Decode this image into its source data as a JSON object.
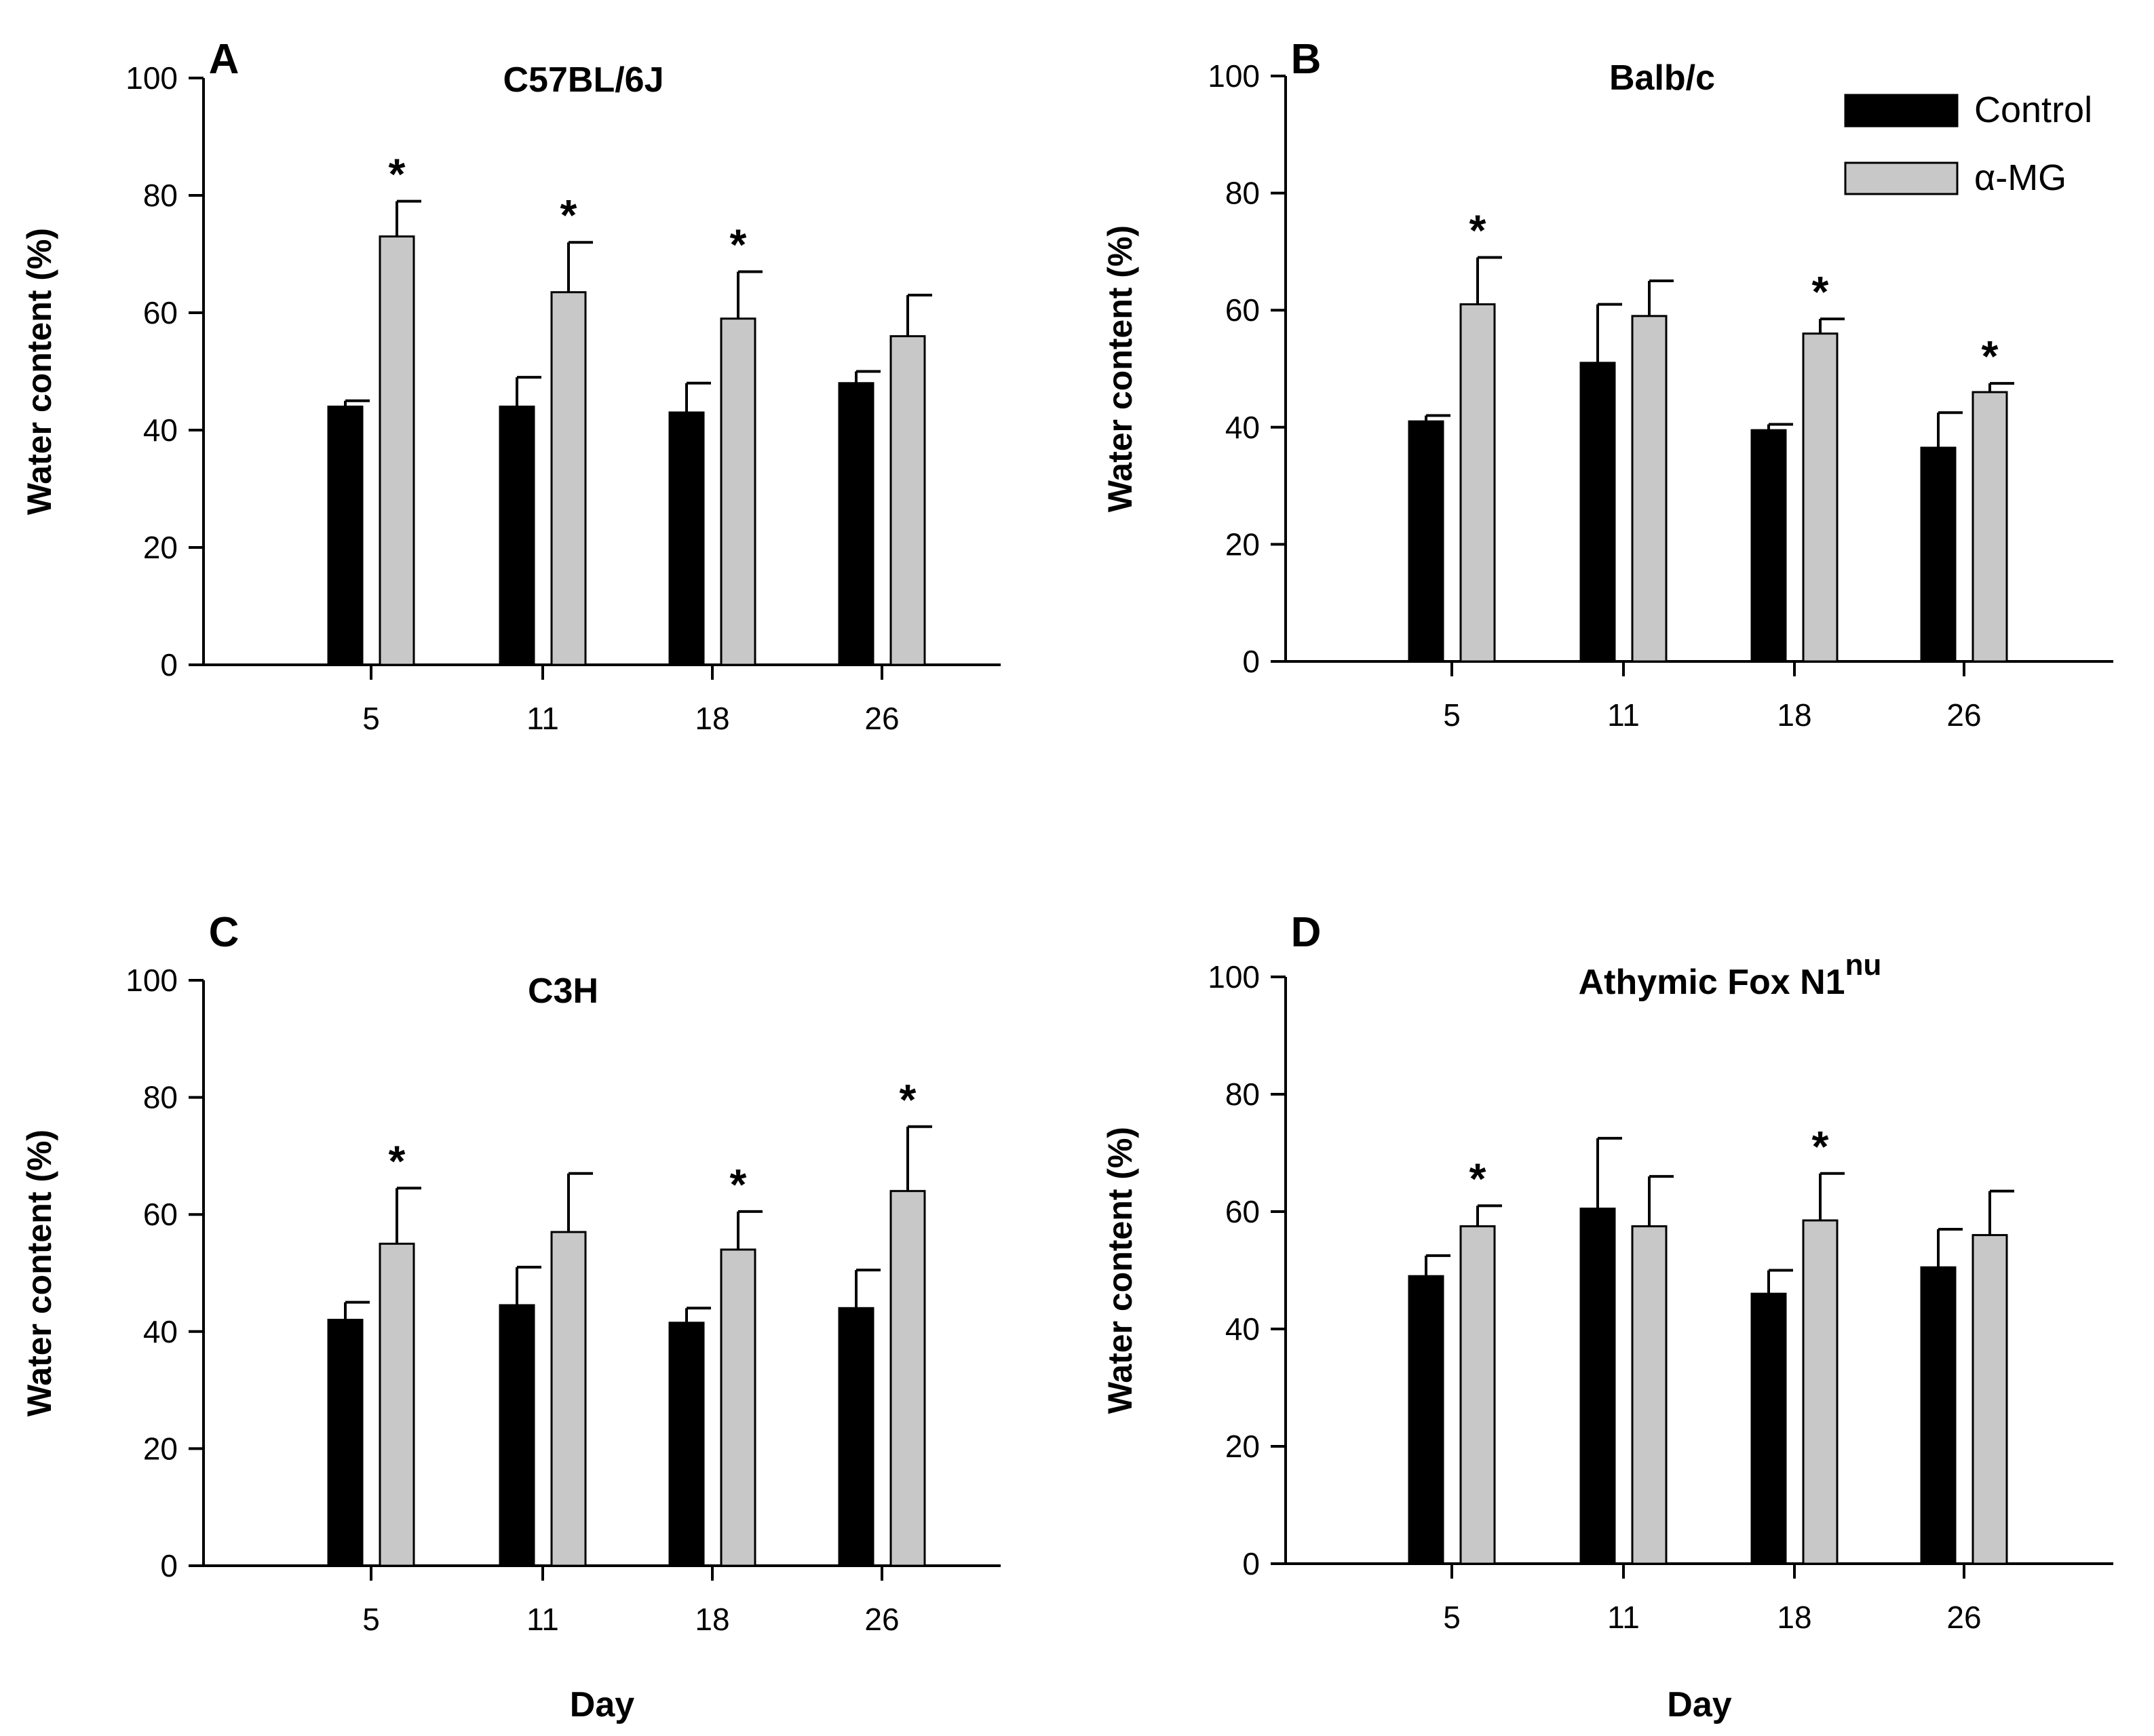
{
  "chart_data": [
    {
      "panel": "A",
      "type": "bar",
      "title": "C57BL/6J",
      "xlabel": "",
      "ylabel": "Water content (%)",
      "ylim": [
        0,
        100
      ],
      "yticks": [
        0,
        20,
        40,
        60,
        80,
        100
      ],
      "categories": [
        "5",
        "11",
        "18",
        "26"
      ],
      "series": [
        {
          "name": "Control",
          "color": "#000000",
          "values": [
            44,
            44,
            43,
            48
          ],
          "errors": [
            1,
            5,
            5,
            2
          ]
        },
        {
          "name": "α-MG",
          "color": "#c8c8c8",
          "values": [
            73,
            63.5,
            59,
            56
          ],
          "errors": [
            6,
            8.5,
            8,
            7
          ]
        }
      ],
      "significance": [
        {
          "category": "5",
          "series": "α-MG",
          "mark": "*"
        },
        {
          "category": "11",
          "series": "α-MG",
          "mark": "*"
        },
        {
          "category": "18",
          "series": "α-MG",
          "mark": "*"
        }
      ]
    },
    {
      "panel": "B",
      "type": "bar",
      "title": "Balb/c",
      "xlabel": "",
      "ylabel": "Water content (%)",
      "ylim": [
        0,
        100
      ],
      "yticks": [
        0,
        20,
        40,
        60,
        80,
        100
      ],
      "categories": [
        "5",
        "11",
        "18",
        "26"
      ],
      "legend_position": "top-right",
      "series": [
        {
          "name": "Control",
          "color": "#000000",
          "values": [
            41,
            51,
            39.5,
            36.5
          ],
          "errors": [
            1,
            10,
            1,
            6
          ]
        },
        {
          "name": "α-MG",
          "color": "#c8c8c8",
          "values": [
            61,
            59,
            56,
            46
          ],
          "errors": [
            8,
            6,
            2.5,
            1.5
          ]
        }
      ],
      "significance": [
        {
          "category": "5",
          "series": "α-MG",
          "mark": "*"
        },
        {
          "category": "18",
          "series": "α-MG",
          "mark": "*"
        },
        {
          "category": "26",
          "series": "α-MG",
          "mark": "*"
        }
      ]
    },
    {
      "panel": "C",
      "type": "bar",
      "title": "C3H",
      "xlabel": "Day",
      "ylabel": "Water content (%)",
      "ylim": [
        0,
        100
      ],
      "yticks": [
        0,
        20,
        40,
        60,
        80,
        100
      ],
      "categories": [
        "5",
        "11",
        "18",
        "26"
      ],
      "series": [
        {
          "name": "Control",
          "color": "#000000",
          "values": [
            42,
            44.5,
            41.5,
            44
          ],
          "errors": [
            3,
            6.5,
            2.5,
            6.5
          ]
        },
        {
          "name": "α-MG",
          "color": "#c8c8c8",
          "values": [
            55,
            57,
            54,
            64
          ],
          "errors": [
            9.5,
            10,
            6.5,
            11
          ]
        }
      ],
      "significance": [
        {
          "category": "5",
          "series": "α-MG",
          "mark": "*"
        },
        {
          "category": "18",
          "series": "α-MG",
          "mark": "*"
        },
        {
          "category": "26",
          "series": "α-MG",
          "mark": "*"
        }
      ]
    },
    {
      "panel": "D",
      "type": "bar",
      "title": "Athymic Fox N1",
      "title_superscript": "nu",
      "xlabel": "Day",
      "ylabel": "Water content (%)",
      "ylim": [
        0,
        100
      ],
      "yticks": [
        0,
        20,
        40,
        60,
        80,
        100
      ],
      "categories": [
        "5",
        "11",
        "18",
        "26"
      ],
      "series": [
        {
          "name": "Control",
          "color": "#000000",
          "values": [
            49,
            60.5,
            46,
            50.5
          ],
          "errors": [
            3.5,
            12,
            4,
            6.5
          ]
        },
        {
          "name": "α-MG",
          "color": "#c8c8c8",
          "values": [
            57.5,
            57.5,
            58.5,
            56
          ],
          "errors": [
            3.5,
            8.5,
            8,
            7.5
          ]
        }
      ],
      "significance": [
        {
          "category": "5",
          "series": "α-MG",
          "mark": "*"
        },
        {
          "category": "18",
          "series": "α-MG",
          "mark": "*"
        }
      ]
    }
  ],
  "legend": {
    "items": [
      {
        "label": "Control",
        "color": "#000000"
      },
      {
        "label": "α-MG",
        "color": "#c8c8c8"
      }
    ]
  }
}
